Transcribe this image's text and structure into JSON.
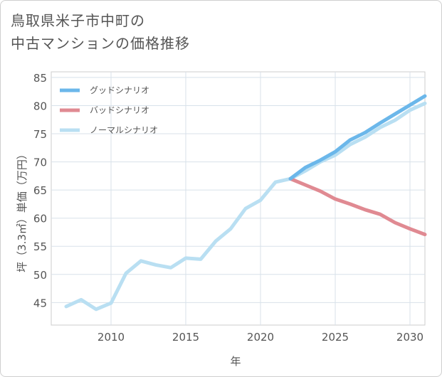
{
  "page": {
    "title_line1": "鳥取県米子市中町の",
    "title_line2": "中古マンションの価格推移"
  },
  "chart_data": {
    "type": "line",
    "title": "鳥取県米子市中町の 中古マンションの価格推移",
    "xlabel": "年",
    "ylabel": "坪（3.3㎡）単価（万円）",
    "xlim": [
      2006,
      2031
    ],
    "ylim": [
      41,
      86
    ],
    "xticks": [
      2010,
      2015,
      2020,
      2025,
      2030
    ],
    "yticks": [
      45,
      50,
      55,
      60,
      65,
      70,
      75,
      80,
      85
    ],
    "legend_position": "top-left",
    "series": [
      {
        "name": "グッドシナリオ",
        "color": "#6bb7ea",
        "x": [
          2022,
          2023,
          2024,
          2025,
          2026,
          2027,
          2028,
          2029,
          2030,
          2031
        ],
        "y": [
          67.0,
          69.0,
          70.3,
          71.8,
          73.9,
          75.2,
          76.9,
          78.5,
          80.1,
          81.7
        ]
      },
      {
        "name": "バッドシナリオ",
        "color": "#e08a92",
        "x": [
          2022,
          2023,
          2024,
          2025,
          2026,
          2027,
          2028,
          2029,
          2030,
          2031
        ],
        "y": [
          67.0,
          65.9,
          64.8,
          63.4,
          62.5,
          61.5,
          60.7,
          59.2,
          58.1,
          57.1
        ]
      },
      {
        "name": "ノーマルシナリオ",
        "color": "#b9dff2",
        "x": [
          2007,
          2008,
          2009,
          2010,
          2011,
          2012,
          2013,
          2014,
          2015,
          2016,
          2017,
          2018,
          2019,
          2020,
          2021,
          2022,
          2023,
          2024,
          2025,
          2026,
          2027,
          2028,
          2029,
          2030,
          2031
        ],
        "y": [
          44.3,
          45.5,
          43.8,
          44.9,
          50.2,
          52.4,
          51.7,
          51.2,
          52.9,
          52.7,
          55.9,
          58.1,
          61.7,
          63.2,
          66.4,
          67.0,
          68.4,
          70.0,
          71.2,
          73.1,
          74.4,
          76.1,
          77.4,
          79.2,
          80.4
        ]
      }
    ]
  }
}
